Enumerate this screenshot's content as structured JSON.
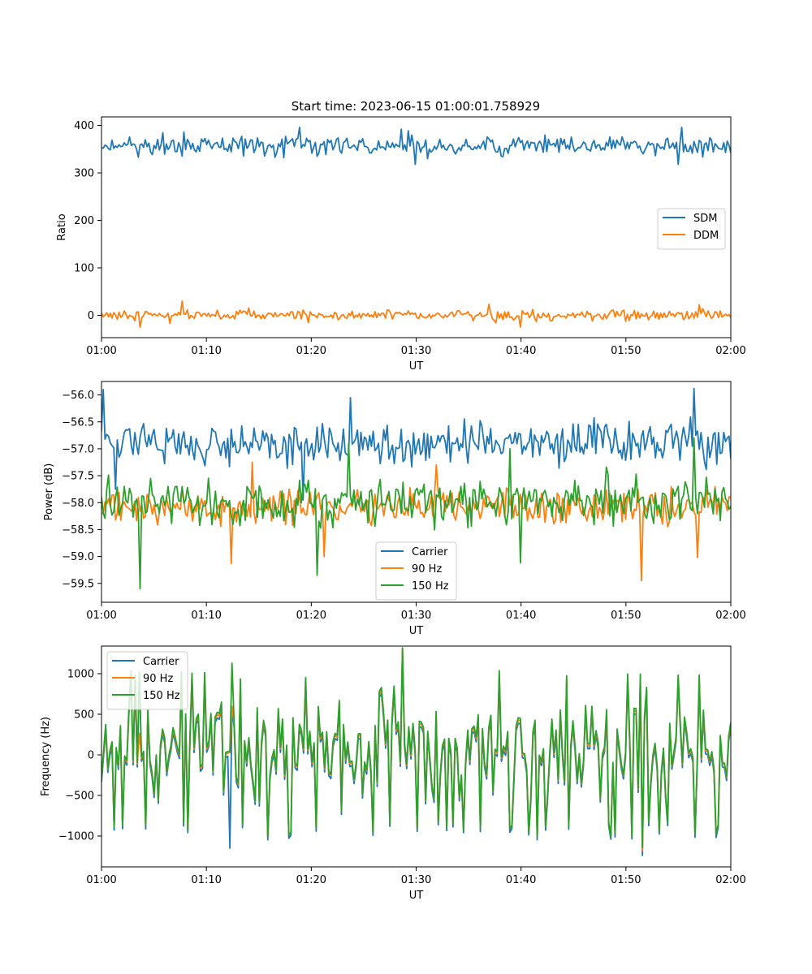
{
  "figure_title": "Start time: 2023-06-15 01:00:01.758929",
  "chart_data": [
    {
      "type": "line",
      "title": "Start time: 2023-06-15 01:00:01.758929",
      "xlabel": "UT",
      "ylabel": "Ratio",
      "x_tick_labels": [
        "01:00",
        "01:10",
        "01:20",
        "01:30",
        "01:40",
        "01:50",
        "02:00"
      ],
      "x_range_minutes": [
        0,
        60
      ],
      "ylim": [
        -47,
        418
      ],
      "y_ticks": [
        0,
        100,
        200,
        300,
        400
      ],
      "y_tick_labels": [
        "0",
        "100",
        "200",
        "300",
        "400"
      ],
      "legend_position": "center-right",
      "grid": false,
      "points_per_series": 360,
      "series": [
        {
          "name": "SDM",
          "color": "#1f77b4",
          "mean": 357,
          "amplitude": 15,
          "min": 318,
          "max": 396,
          "peaks": [
            [
              18.9,
              396
            ],
            [
              28.6,
              392
            ],
            [
              55.3,
              396
            ]
          ],
          "dips": [
            [
              29.9,
              318
            ],
            [
              55.0,
              318
            ]
          ]
        },
        {
          "name": "DDM",
          "color": "#ff7f0e",
          "mean": 0,
          "amplitude": 8,
          "min": -25,
          "max": 30,
          "peaks": [
            [
              7.7,
              30
            ],
            [
              36.9,
              23
            ],
            [
              57.0,
              22
            ]
          ],
          "dips": [
            [
              3.6,
              -25
            ],
            [
              39.9,
              -25
            ]
          ]
        }
      ]
    },
    {
      "type": "line",
      "title": "",
      "xlabel": "UT",
      "ylabel": "Power (dB)",
      "x_tick_labels": [
        "01:00",
        "01:10",
        "01:20",
        "01:30",
        "01:40",
        "01:50",
        "02:00"
      ],
      "x_range_minutes": [
        0,
        60
      ],
      "ylim": [
        -59.85,
        -55.75
      ],
      "y_ticks": [
        -59.5,
        -59.0,
        -58.5,
        -58.0,
        -57.5,
        -57.0,
        -56.5,
        -56.0
      ],
      "y_tick_labels": [
        "−59.5",
        "−59.0",
        "−58.5",
        "−58.0",
        "−57.5",
        "−57.0",
        "−56.5",
        "−56.0"
      ],
      "legend_position": "lower-center",
      "grid": false,
      "points_per_series": 360,
      "series": [
        {
          "name": "Carrier",
          "color": "#1f77b4",
          "mean": -56.9,
          "amplitude": 0.28,
          "min": -57.95,
          "max": -55.88,
          "peaks": [
            [
              0.1,
              -55.9
            ],
            [
              56.5,
              -55.88
            ],
            [
              23.8,
              -56.05
            ]
          ],
          "dips": [
            [
              19.3,
              -57.95
            ],
            [
              1.4,
              -57.75
            ]
          ]
        },
        {
          "name": "90 Hz",
          "color": "#ff7f0e",
          "mean": -58.05,
          "amplitude": 0.25,
          "min": -59.45,
          "max": -57.2,
          "peaks": [
            [
              14.4,
              -57.25
            ],
            [
              31.9,
              -57.3
            ]
          ],
          "dips": [
            [
              51.5,
              -59.45
            ],
            [
              12.3,
              -59.13
            ],
            [
              56.9,
              -59.02
            ],
            [
              21.3,
              -59.0
            ]
          ]
        },
        {
          "name": "150 Hz",
          "color": "#2ca02c",
          "mean": -58.0,
          "amplitude": 0.3,
          "min": -59.6,
          "max": -56.8,
          "peaks": [
            [
              56.5,
              -56.8
            ],
            [
              23.6,
              -56.9
            ],
            [
              38.9,
              -57.0
            ]
          ],
          "dips": [
            [
              3.7,
              -59.6
            ],
            [
              20.5,
              -59.35
            ],
            [
              39.9,
              -59.12
            ]
          ]
        }
      ]
    },
    {
      "type": "line",
      "title": "",
      "xlabel": "UT",
      "ylabel": "Frequency (Hz)",
      "x_tick_labels": [
        "01:00",
        "01:10",
        "01:20",
        "01:30",
        "01:40",
        "01:50",
        "02:00"
      ],
      "x_range_minutes": [
        0,
        60
      ],
      "ylim": [
        -1380,
        1340
      ],
      "y_ticks": [
        -1000,
        -500,
        0,
        500,
        1000
      ],
      "y_tick_labels": [
        "−1000",
        "−500",
        "0",
        "500",
        "1000"
      ],
      "legend_position": "upper-left",
      "grid": false,
      "points_per_series": 300,
      "series": [
        {
          "name": "Carrier",
          "color": "#1f77b4",
          "mean": 0,
          "amplitude": 450,
          "min": -1240,
          "max": 1280,
          "peaks": [
            [
              28.6,
              1280
            ],
            [
              3.6,
              1000
            ]
          ],
          "dips": [
            [
              51.5,
              -1240
            ],
            [
              12.3,
              -1150
            ]
          ]
        },
        {
          "name": "90 Hz",
          "color": "#ff7f0e",
          "mean": 40,
          "amplitude": 450,
          "min": -1180,
          "max": 1300,
          "peaks": [
            [
              28.6,
              1300
            ]
          ],
          "dips": [
            [
              51.5,
              -1180
            ]
          ]
        },
        {
          "name": "150 Hz",
          "color": "#2ca02c",
          "mean": 60,
          "amplitude": 460,
          "min": -1140,
          "max": 1320,
          "peaks": [
            [
              28.6,
              1320
            ],
            [
              3.6,
              1020
            ],
            [
              12.5,
              1130
            ]
          ],
          "dips": [
            [
              51.5,
              -1140
            ]
          ]
        }
      ]
    }
  ]
}
